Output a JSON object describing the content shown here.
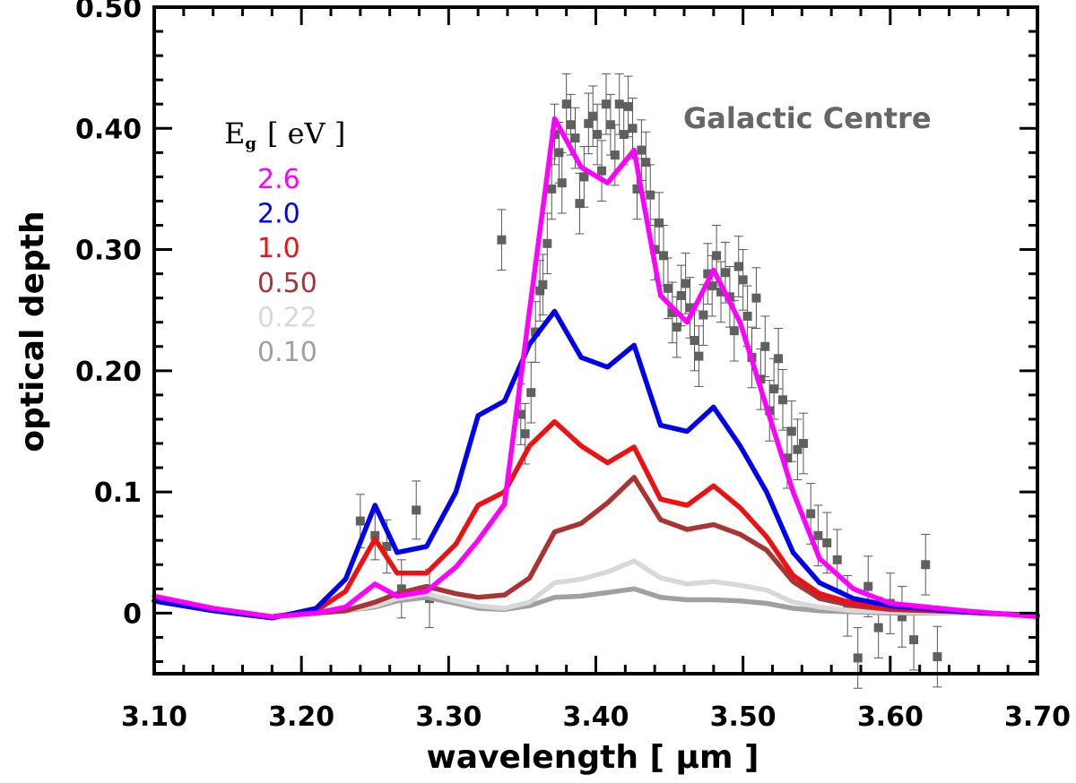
{
  "chart_data": {
    "type": "line",
    "xlabel": "wavelength [ μm ]",
    "ylabel": "optical depth",
    "xlim": [
      3.1,
      3.7
    ],
    "ylim": [
      -0.05,
      0.5
    ],
    "xticks": [
      3.1,
      3.2,
      3.3,
      3.4,
      3.5,
      3.6,
      3.7
    ],
    "xtick_labels": [
      "3.10",
      "3.20",
      "3.30",
      "3.40",
      "3.50",
      "3.60",
      "3.70"
    ],
    "yticks": [
      0,
      0.1,
      0.2,
      0.3,
      0.4,
      0.5
    ],
    "ytick_labels": [
      "0",
      "0.1",
      "0.20",
      "0.30",
      "0.40",
      "0.50"
    ],
    "annotation": "Galactic Centre",
    "legend": {
      "title": "E",
      "title_sub": "g",
      "title_unit": "[ eV ]"
    },
    "x": [
      3.1,
      3.14,
      3.18,
      3.21,
      3.23,
      3.25,
      3.265,
      3.285,
      3.305,
      3.32,
      3.338,
      3.355,
      3.372,
      3.39,
      3.408,
      3.426,
      3.444,
      3.462,
      3.48,
      3.498,
      3.516,
      3.534,
      3.552,
      3.575,
      3.6,
      3.65,
      3.7
    ],
    "series": [
      {
        "name": "2.6",
        "color": "#ff00ff",
        "width": 5.5,
        "values": [
          0.014,
          0.004,
          -0.003,
          0.0,
          0.005,
          0.024,
          0.014,
          0.018,
          0.038,
          0.06,
          0.09,
          0.25,
          0.408,
          0.368,
          0.355,
          0.382,
          0.262,
          0.24,
          0.283,
          0.24,
          0.17,
          0.1,
          0.045,
          0.02,
          0.008,
          0.002,
          -0.003
        ]
      },
      {
        "name": "2.0",
        "color": "#0000ee",
        "width": 5.5,
        "values": [
          0.01,
          0.002,
          -0.004,
          0.004,
          0.028,
          0.089,
          0.05,
          0.055,
          0.1,
          0.163,
          0.175,
          0.222,
          0.249,
          0.211,
          0.203,
          0.221,
          0.155,
          0.15,
          0.17,
          0.138,
          0.1,
          0.05,
          0.025,
          0.012,
          0.006,
          0.001,
          -0.002
        ]
      },
      {
        "name": "1.0",
        "color": "#ee1111",
        "width": 5.5,
        "values": [
          0.01,
          0.002,
          -0.003,
          0.002,
          0.018,
          0.061,
          0.033,
          0.033,
          0.057,
          0.089,
          0.1,
          0.138,
          0.158,
          0.138,
          0.124,
          0.137,
          0.094,
          0.089,
          0.105,
          0.087,
          0.063,
          0.031,
          0.016,
          0.008,
          0.004,
          0.001,
          -0.002
        ]
      },
      {
        "name": "0.50",
        "color": "#aa3333",
        "width": 5.5,
        "values": [
          0.01,
          0.002,
          -0.003,
          0.0,
          0.002,
          0.009,
          0.016,
          0.022,
          0.016,
          0.013,
          0.015,
          0.029,
          0.067,
          0.074,
          0.091,
          0.112,
          0.077,
          0.069,
          0.073,
          0.065,
          0.052,
          0.026,
          0.012,
          0.006,
          0.003,
          0.001,
          -0.002
        ]
      },
      {
        "name": "0.22",
        "color": "#d8d8d8",
        "width": 5.5,
        "values": [
          0.01,
          0.002,
          -0.003,
          0.0,
          0.002,
          0.006,
          0.012,
          0.016,
          0.01,
          0.006,
          0.004,
          0.009,
          0.025,
          0.028,
          0.034,
          0.043,
          0.029,
          0.024,
          0.026,
          0.023,
          0.019,
          0.009,
          0.005,
          0.002,
          0.001,
          0.0,
          -0.002
        ]
      },
      {
        "name": "0.10",
        "color": "#a0a0a0",
        "width": 5.5,
        "values": [
          0.01,
          0.002,
          -0.003,
          0.0,
          0.002,
          0.005,
          0.01,
          0.013,
          0.008,
          0.004,
          0.003,
          0.006,
          0.013,
          0.014,
          0.017,
          0.02,
          0.013,
          0.011,
          0.011,
          0.01,
          0.008,
          0.004,
          0.002,
          0.001,
          0.0,
          0.0,
          -0.002
        ]
      }
    ],
    "observations": {
      "name": "Galactic Centre",
      "color": "#606060",
      "x": [
        3.24,
        3.25,
        3.258,
        3.268,
        3.278,
        3.287,
        3.336,
        3.349,
        3.352,
        3.356,
        3.359,
        3.362,
        3.364,
        3.367,
        3.37,
        3.372,
        3.375,
        3.377,
        3.38,
        3.383,
        3.386,
        3.389,
        3.392,
        3.395,
        3.398,
        3.401,
        3.404,
        3.407,
        3.41,
        3.413,
        3.416,
        3.419,
        3.422,
        3.425,
        3.428,
        3.431,
        3.434,
        3.437,
        3.44,
        3.443,
        3.446,
        3.449,
        3.452,
        3.455,
        3.458,
        3.461,
        3.464,
        3.467,
        3.47,
        3.473,
        3.476,
        3.479,
        3.482,
        3.485,
        3.488,
        3.491,
        3.494,
        3.497,
        3.5,
        3.503,
        3.506,
        3.509,
        3.512,
        3.515,
        3.518,
        3.521,
        3.524,
        3.527,
        3.53,
        3.533,
        3.537,
        3.541,
        3.546,
        3.551,
        3.557,
        3.564,
        3.571,
        3.578,
        3.585,
        3.592,
        3.6,
        3.608,
        3.616,
        3.624,
        3.632
      ],
      "y": [
        0.076,
        0.064,
        0.055,
        0.02,
        0.085,
        0.012,
        0.308,
        0.164,
        0.148,
        0.182,
        0.232,
        0.266,
        0.271,
        0.305,
        0.35,
        0.395,
        0.38,
        0.355,
        0.42,
        0.403,
        0.392,
        0.338,
        0.36,
        0.404,
        0.41,
        0.395,
        0.365,
        0.42,
        0.403,
        0.378,
        0.42,
        0.395,
        0.418,
        0.4,
        0.35,
        0.382,
        0.372,
        0.345,
        0.3,
        0.322,
        0.295,
        0.268,
        0.248,
        0.236,
        0.262,
        0.272,
        0.252,
        0.225,
        0.212,
        0.246,
        0.28,
        0.27,
        0.295,
        0.265,
        0.281,
        0.261,
        0.233,
        0.286,
        0.275,
        0.245,
        0.211,
        0.26,
        0.193,
        0.22,
        0.167,
        0.185,
        0.21,
        0.176,
        0.128,
        0.15,
        0.135,
        0.14,
        0.082,
        0.064,
        0.058,
        0.044,
        0.006,
        -0.037,
        0.022,
        -0.012,
        0.008,
        -0.003,
        -0.022,
        0.04,
        -0.036
      ],
      "err": [
        0.022,
        0.02,
        0.022,
        0.024,
        0.024,
        0.024,
        0.025,
        0.025,
        0.025,
        0.025,
        0.025,
        0.025,
        0.025,
        0.025,
        0.025,
        0.025,
        0.025,
        0.025,
        0.025,
        0.025,
        0.025,
        0.025,
        0.025,
        0.025,
        0.025,
        0.025,
        0.025,
        0.025,
        0.025,
        0.025,
        0.025,
        0.025,
        0.025,
        0.025,
        0.025,
        0.025,
        0.025,
        0.025,
        0.025,
        0.025,
        0.025,
        0.025,
        0.025,
        0.025,
        0.025,
        0.025,
        0.025,
        0.025,
        0.025,
        0.025,
        0.025,
        0.025,
        0.025,
        0.025,
        0.025,
        0.025,
        0.025,
        0.025,
        0.025,
        0.025,
        0.025,
        0.025,
        0.025,
        0.025,
        0.025,
        0.025,
        0.025,
        0.025,
        0.025,
        0.025,
        0.025,
        0.025,
        0.025,
        0.025,
        0.025,
        0.025,
        0.025,
        0.025,
        0.025,
        0.025,
        0.025,
        0.025,
        0.025,
        0.025,
        0.025
      ]
    }
  }
}
